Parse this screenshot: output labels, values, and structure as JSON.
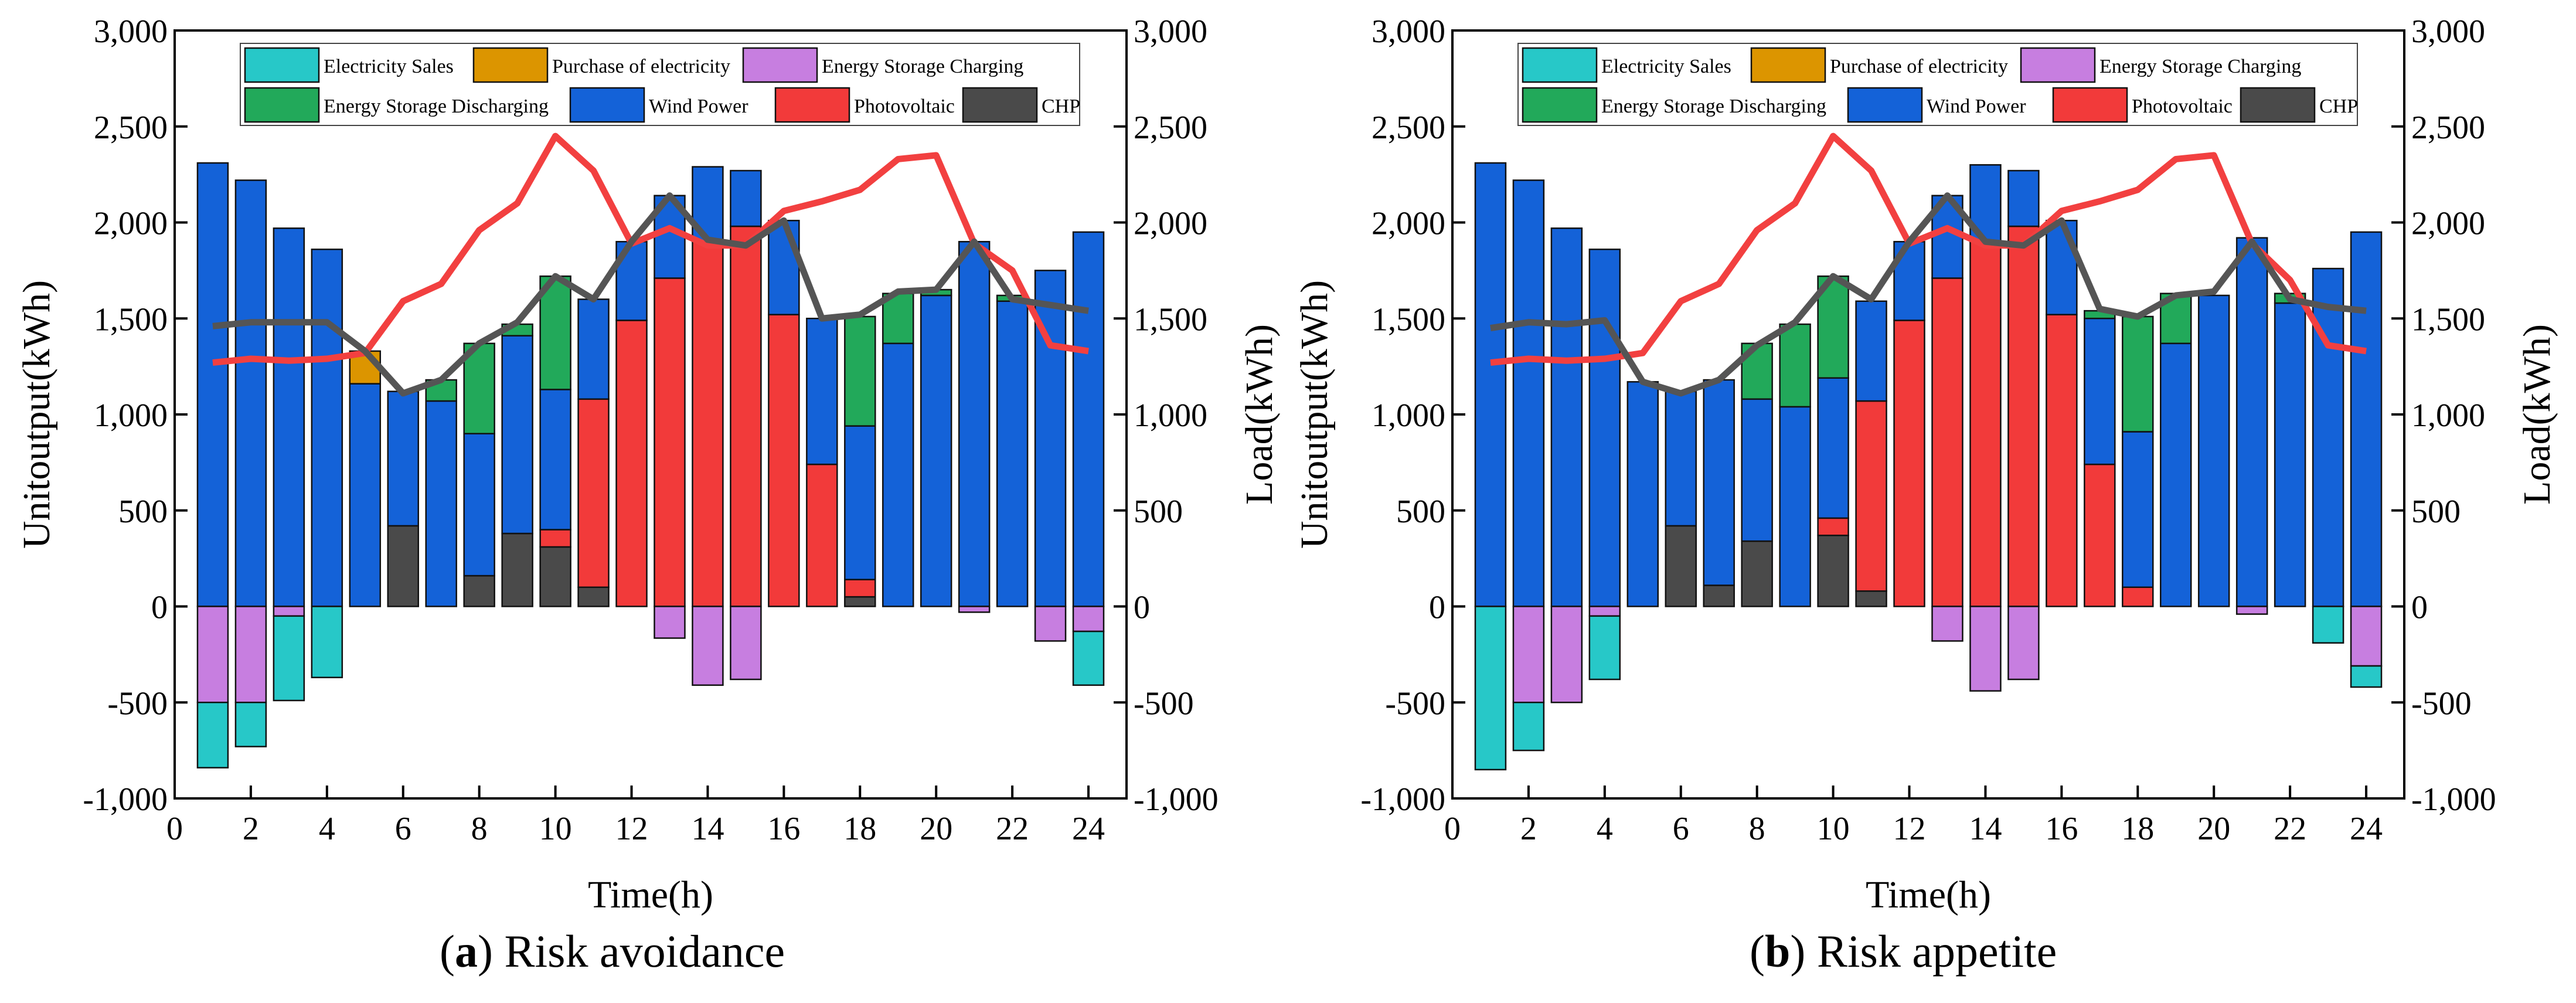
{
  "colors": {
    "sales": "#27c8c8",
    "purchase": "#dc9500",
    "charging": "#c77ee0",
    "discharging": "#22a95a",
    "wind": "#1462d8",
    "pv": "#f23a3a",
    "chp": "#4a4a4a",
    "load_line": "#f24040",
    "load2_line": "#555555"
  },
  "legend": [
    {
      "key": "sales",
      "label": "Electricity Sales"
    },
    {
      "key": "purchase",
      "label": "Purchase of electricity"
    },
    {
      "key": "charging",
      "label": "Energy Storage Charging"
    },
    {
      "key": "discharging",
      "label": "Energy Storage Discharging"
    },
    {
      "key": "wind",
      "label": "Wind Power"
    },
    {
      "key": "pv",
      "label": "Photovoltaic"
    },
    {
      "key": "chp",
      "label": "CHP"
    }
  ],
  "captions": [
    {
      "letter": "a",
      "text": "Risk avoidance"
    },
    {
      "letter": "b",
      "text": "Risk appetite"
    }
  ],
  "chart_data": [
    {
      "type": "bar",
      "subtitle": "(a) Risk avoidance",
      "xlabel": "Time(h)",
      "ylabel": "Unitoutput(kWh)",
      "y2label": "Load(kWh)",
      "xlim": [
        0,
        25
      ],
      "ylim": [
        -1000,
        3000
      ],
      "x_ticks": [
        "0",
        "2",
        "4",
        "6",
        "8",
        "10",
        "12",
        "14",
        "16",
        "18",
        "20",
        "22",
        "24"
      ],
      "y_ticks": [
        "-1,000",
        "-500",
        "0",
        "500",
        "1,000",
        "1,500",
        "2,000",
        "2,500",
        "3,000"
      ],
      "x": [
        1,
        2,
        3,
        4,
        5,
        6,
        7,
        8,
        9,
        10,
        11,
        12,
        13,
        14,
        15,
        16,
        17,
        18,
        19,
        20,
        21,
        22,
        23,
        24
      ],
      "series": [
        {
          "key": "chp",
          "name": "CHP",
          "values": [
            0,
            0,
            0,
            0,
            0,
            420,
            0,
            160,
            380,
            310,
            100,
            0,
            0,
            0,
            0,
            0,
            0,
            50,
            0,
            0,
            0,
            0,
            0,
            0
          ]
        },
        {
          "key": "pv",
          "name": "Photovoltaic",
          "values": [
            0,
            0,
            0,
            0,
            0,
            0,
            0,
            0,
            0,
            90,
            980,
            1490,
            1710,
            1900,
            1980,
            1520,
            740,
            90,
            0,
            0,
            0,
            0,
            0,
            0
          ]
        },
        {
          "key": "wind",
          "name": "Wind Power",
          "values": [
            2310,
            2220,
            1970,
            1860,
            1160,
            700,
            1070,
            740,
            1030,
            730,
            520,
            410,
            430,
            390,
            290,
            490,
            760,
            800,
            1370,
            1620,
            1900,
            1590,
            1750,
            1950
          ]
        },
        {
          "key": "discharging",
          "name": "Energy Storage Discharging",
          "values": [
            0,
            0,
            0,
            0,
            0,
            0,
            110,
            470,
            60,
            590,
            0,
            0,
            0,
            0,
            0,
            0,
            0,
            570,
            260,
            30,
            0,
            30,
            0,
            0
          ]
        },
        {
          "key": "purchase",
          "name": "Purchase of electricity",
          "values": [
            0,
            0,
            0,
            0,
            170,
            0,
            0,
            0,
            0,
            0,
            0,
            0,
            0,
            0,
            0,
            0,
            0,
            0,
            0,
            0,
            0,
            0,
            0,
            0
          ]
        },
        {
          "key": "charging",
          "name": "Energy Storage Charging",
          "values": [
            -500,
            -500,
            -50,
            0,
            0,
            0,
            0,
            0,
            0,
            0,
            0,
            0,
            -165,
            -410,
            -380,
            0,
            0,
            0,
            0,
            0,
            -30,
            0,
            -180,
            -130
          ]
        },
        {
          "key": "sales",
          "name": "Electricity Sales",
          "values": [
            -340,
            -230,
            -440,
            -370,
            0,
            0,
            0,
            0,
            0,
            0,
            0,
            0,
            0,
            0,
            0,
            0,
            0,
            0,
            0,
            0,
            0,
            0,
            0,
            -280
          ]
        }
      ],
      "lines": [
        {
          "key": "load_line",
          "name": "Load",
          "values": [
            1270,
            1290,
            1280,
            1290,
            1320,
            1590,
            1680,
            1960,
            2100,
            2450,
            2270,
            1890,
            1970,
            1880,
            1880,
            2060,
            2110,
            2170,
            2330,
            2350,
            1890,
            1750,
            1360,
            1330
          ]
        },
        {
          "key": "load2_line",
          "name": "Load",
          "values": [
            1460,
            1480,
            1480,
            1480,
            1330,
            1110,
            1180,
            1370,
            1480,
            1720,
            1600,
            1900,
            2140,
            1910,
            1880,
            2010,
            1500,
            1520,
            1640,
            1650,
            1900,
            1600,
            1570,
            1540
          ]
        }
      ]
    },
    {
      "type": "bar",
      "subtitle": "(b) Risk appetite",
      "xlabel": "Time(h)",
      "ylabel": "Unitoutput(kWh)",
      "y2label": "Load(kWh)",
      "xlim": [
        0,
        25
      ],
      "ylim": [
        -1000,
        3000
      ],
      "x_ticks": [
        "0",
        "2",
        "4",
        "6",
        "8",
        "10",
        "12",
        "14",
        "16",
        "18",
        "20",
        "22",
        "24"
      ],
      "y_ticks": [
        "-1,000",
        "-500",
        "0",
        "500",
        "1,000",
        "1,500",
        "2,000",
        "2,500",
        "3,000"
      ],
      "x": [
        1,
        2,
        3,
        4,
        5,
        6,
        7,
        8,
        9,
        10,
        11,
        12,
        13,
        14,
        15,
        16,
        17,
        18,
        19,
        20,
        21,
        22,
        23,
        24
      ],
      "series": [
        {
          "key": "chp",
          "name": "CHP",
          "values": [
            0,
            0,
            0,
            0,
            0,
            420,
            110,
            340,
            0,
            370,
            80,
            0,
            0,
            0,
            0,
            0,
            0,
            0,
            0,
            0,
            0,
            0,
            0,
            0
          ]
        },
        {
          "key": "pv",
          "name": "Photovoltaic",
          "values": [
            0,
            0,
            0,
            0,
            0,
            0,
            0,
            0,
            0,
            90,
            990,
            1490,
            1710,
            1900,
            1980,
            1520,
            740,
            100,
            0,
            0,
            0,
            0,
            0,
            0
          ]
        },
        {
          "key": "wind",
          "name": "Wind Power",
          "values": [
            2310,
            2220,
            1970,
            1860,
            1170,
            700,
            1070,
            740,
            1040,
            730,
            520,
            410,
            430,
            400,
            290,
            490,
            760,
            810,
            1370,
            1620,
            1920,
            1580,
            1760,
            1950
          ]
        },
        {
          "key": "discharging",
          "name": "Energy Storage Discharging",
          "values": [
            0,
            0,
            0,
            0,
            0,
            0,
            0,
            290,
            430,
            530,
            0,
            0,
            0,
            0,
            0,
            0,
            40,
            600,
            260,
            0,
            0,
            50,
            0,
            0
          ]
        },
        {
          "key": "purchase",
          "name": "Purchase of electricity",
          "values": [
            0,
            0,
            0,
            0,
            0,
            0,
            0,
            0,
            0,
            0,
            0,
            0,
            0,
            0,
            0,
            0,
            0,
            0,
            0,
            0,
            0,
            0,
            0,
            0
          ]
        },
        {
          "key": "charging",
          "name": "Energy Storage Charging",
          "values": [
            0,
            -500,
            -500,
            -50,
            0,
            0,
            0,
            0,
            0,
            0,
            0,
            0,
            -180,
            -440,
            -380,
            0,
            0,
            0,
            0,
            0,
            -40,
            0,
            0,
            -310
          ]
        },
        {
          "key": "sales",
          "name": "Electricity Sales",
          "values": [
            -850,
            -250,
            0,
            -330,
            0,
            0,
            0,
            0,
            0,
            0,
            0,
            0,
            0,
            0,
            0,
            0,
            0,
            0,
            0,
            0,
            0,
            0,
            -190,
            -110
          ]
        }
      ],
      "lines": [
        {
          "key": "load_line",
          "name": "Load",
          "values": [
            1270,
            1290,
            1280,
            1290,
            1320,
            1590,
            1680,
            1960,
            2100,
            2450,
            2270,
            1890,
            1970,
            1880,
            1880,
            2060,
            2110,
            2170,
            2330,
            2350,
            1890,
            1700,
            1360,
            1330
          ]
        },
        {
          "key": "load2_line",
          "name": "Load",
          "values": [
            1450,
            1480,
            1470,
            1490,
            1170,
            1110,
            1180,
            1360,
            1480,
            1720,
            1600,
            1900,
            2140,
            1900,
            1880,
            2010,
            1550,
            1510,
            1620,
            1640,
            1900,
            1600,
            1560,
            1540
          ]
        }
      ]
    }
  ]
}
